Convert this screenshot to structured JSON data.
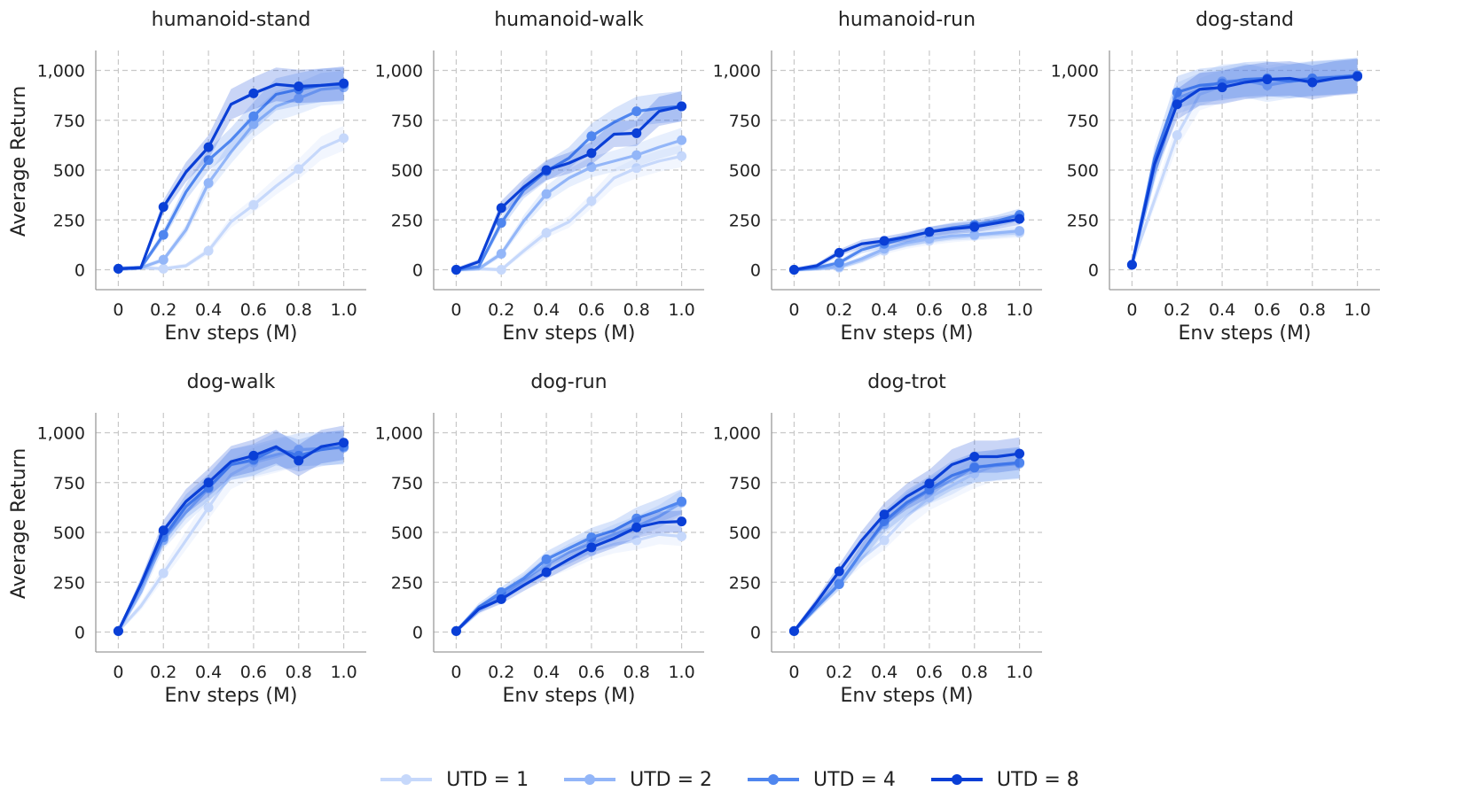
{
  "figure": {
    "x_label": "Env steps (M)",
    "y_label": "Average Return",
    "x_ticks": [
      "0",
      "0.2",
      "0.4",
      "0.6",
      "0.8",
      "1.0"
    ],
    "y_ticks": [
      "0",
      "250",
      "500",
      "750",
      "1,000"
    ],
    "xlim": [
      -0.1,
      1.1
    ],
    "ylim": [
      -100,
      1100
    ],
    "grid": true,
    "legend_position": "bottom-center"
  },
  "series_styles": [
    {
      "name": "UTD = 1",
      "color": "#c6d8fb"
    },
    {
      "name": "UTD = 2",
      "color": "#93b6f8"
    },
    {
      "name": "UTD = 4",
      "color": "#4f86ef"
    },
    {
      "name": "UTD = 8",
      "color": "#0a3fd6"
    }
  ],
  "chart_data": [
    {
      "type": "line",
      "title": "humanoid-stand",
      "x": [
        0,
        0.1,
        0.2,
        0.3,
        0.4,
        0.5,
        0.6,
        0.7,
        0.8,
        0.9,
        1.0
      ],
      "series": [
        {
          "name": "UTD = 1",
          "values": [
            5,
            10,
            5,
            20,
            95,
            240,
            325,
            420,
            505,
            610,
            660
          ]
        },
        {
          "name": "UTD = 2",
          "values": [
            5,
            10,
            50,
            200,
            435,
            590,
            730,
            820,
            860,
            905,
            915
          ]
        },
        {
          "name": "UTD = 4",
          "values": [
            5,
            10,
            175,
            390,
            550,
            650,
            770,
            880,
            905,
            925,
            930
          ]
        },
        {
          "name": "UTD = 8",
          "values": [
            5,
            10,
            315,
            490,
            615,
            830,
            885,
            930,
            920,
            925,
            935
          ]
        }
      ]
    },
    {
      "type": "line",
      "title": "humanoid-walk",
      "x": [
        0,
        0.1,
        0.2,
        0.3,
        0.4,
        0.5,
        0.6,
        0.7,
        0.8,
        0.9,
        1.0
      ],
      "series": [
        {
          "name": "UTD = 1",
          "values": [
            0,
            5,
            0,
            95,
            185,
            240,
            345,
            460,
            510,
            545,
            570
          ]
        },
        {
          "name": "UTD = 2",
          "values": [
            0,
            5,
            80,
            245,
            380,
            460,
            515,
            545,
            575,
            615,
            650
          ]
        },
        {
          "name": "UTD = 4",
          "values": [
            0,
            15,
            235,
            400,
            495,
            560,
            670,
            740,
            795,
            810,
            820
          ]
        },
        {
          "name": "UTD = 8",
          "values": [
            0,
            40,
            310,
            415,
            500,
            535,
            585,
            680,
            685,
            795,
            820
          ]
        }
      ]
    },
    {
      "type": "line",
      "title": "humanoid-run",
      "x": [
        0,
        0.1,
        0.2,
        0.3,
        0.4,
        0.5,
        0.6,
        0.7,
        0.8,
        0.9,
        1.0
      ],
      "series": [
        {
          "name": "UTD = 1",
          "values": [
            0,
            5,
            10,
            45,
            95,
            125,
            145,
            160,
            170,
            178,
            185
          ]
        },
        {
          "name": "UTD = 2",
          "values": [
            0,
            5,
            15,
            55,
            105,
            135,
            155,
            170,
            175,
            185,
            195
          ]
        },
        {
          "name": "UTD = 4",
          "values": [
            0,
            10,
            35,
            100,
            130,
            160,
            190,
            210,
            225,
            245,
            275
          ]
        },
        {
          "name": "UTD = 8",
          "values": [
            0,
            20,
            85,
            130,
            145,
            165,
            190,
            205,
            215,
            235,
            255
          ]
        }
      ]
    },
    {
      "type": "line",
      "title": "dog-stand",
      "x": [
        0,
        0.1,
        0.2,
        0.3,
        0.4,
        0.5,
        0.6,
        0.7,
        0.8,
        0.9,
        1.0
      ],
      "series": [
        {
          "name": "UTD = 1",
          "values": [
            25,
            350,
            675,
            880,
            920,
            945,
            940,
            955,
            960,
            970,
            975
          ]
        },
        {
          "name": "UTD = 2",
          "values": [
            25,
            480,
            860,
            905,
            945,
            950,
            925,
            945,
            955,
            965,
            975
          ]
        },
        {
          "name": "UTD = 4",
          "values": [
            25,
            560,
            890,
            925,
            935,
            955,
            960,
            945,
            960,
            965,
            975
          ]
        },
        {
          "name": "UTD = 8",
          "values": [
            25,
            530,
            830,
            905,
            915,
            940,
            955,
            960,
            940,
            960,
            970
          ]
        }
      ]
    },
    {
      "type": "line",
      "title": "dog-walk",
      "x": [
        0,
        0.1,
        0.2,
        0.3,
        0.4,
        0.5,
        0.6,
        0.7,
        0.8,
        0.9,
        1.0
      ],
      "series": [
        {
          "name": "UTD = 1",
          "values": [
            5,
            130,
            295,
            460,
            625,
            790,
            850,
            880,
            915,
            920,
            925
          ]
        },
        {
          "name": "UTD = 2",
          "values": [
            5,
            200,
            460,
            600,
            720,
            840,
            860,
            890,
            915,
            920,
            925
          ]
        },
        {
          "name": "UTD = 4",
          "values": [
            5,
            240,
            475,
            630,
            725,
            840,
            865,
            920,
            885,
            915,
            930
          ]
        },
        {
          "name": "UTD = 8",
          "values": [
            5,
            240,
            510,
            655,
            750,
            855,
            885,
            930,
            860,
            930,
            950
          ]
        }
      ]
    },
    {
      "type": "line",
      "title": "dog-run",
      "x": [
        0,
        0.1,
        0.2,
        0.3,
        0.4,
        0.5,
        0.6,
        0.7,
        0.8,
        0.9,
        1.0
      ],
      "series": [
        {
          "name": "UTD = 1",
          "values": [
            5,
            105,
            175,
            250,
            305,
            350,
            405,
            440,
            460,
            490,
            480
          ]
        },
        {
          "name": "UTD = 2",
          "values": [
            5,
            115,
            185,
            260,
            340,
            400,
            445,
            490,
            530,
            580,
            650
          ]
        },
        {
          "name": "UTD = 4",
          "values": [
            5,
            125,
            200,
            270,
            365,
            420,
            475,
            510,
            570,
            610,
            655
          ]
        },
        {
          "name": "UTD = 8",
          "values": [
            5,
            115,
            165,
            235,
            300,
            365,
            425,
            470,
            525,
            550,
            555
          ]
        }
      ]
    },
    {
      "type": "line",
      "title": "dog-trot",
      "x": [
        0,
        0.1,
        0.2,
        0.3,
        0.4,
        0.5,
        0.6,
        0.7,
        0.8,
        0.9,
        1.0
      ],
      "series": [
        {
          "name": "UTD = 1",
          "values": [
            5,
            130,
            260,
            370,
            460,
            580,
            675,
            735,
            795,
            840,
            850
          ]
        },
        {
          "name": "UTD = 2",
          "values": [
            5,
            130,
            245,
            400,
            540,
            640,
            710,
            760,
            830,
            835,
            845
          ]
        },
        {
          "name": "UTD = 4",
          "values": [
            5,
            125,
            240,
            400,
            555,
            650,
            715,
            785,
            825,
            840,
            850
          ]
        },
        {
          "name": "UTD = 8",
          "values": [
            5,
            150,
            305,
            460,
            590,
            680,
            745,
            840,
            880,
            880,
            895
          ]
        }
      ]
    }
  ]
}
